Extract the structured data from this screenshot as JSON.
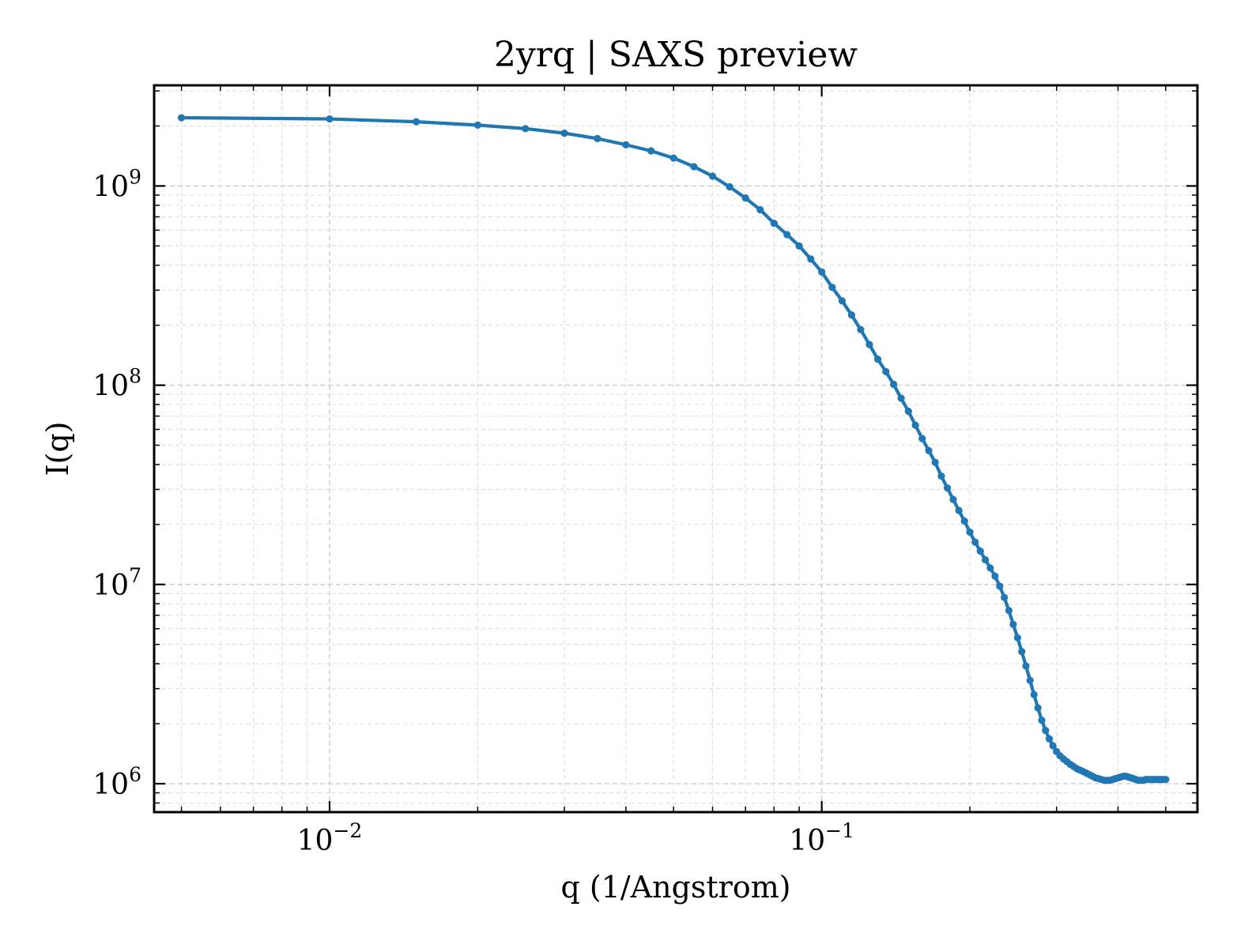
{
  "chart_data": {
    "type": "line",
    "title": "2yrq | SAXS preview",
    "xlabel": "q (1/Angstrom)",
    "ylabel": "I(q)",
    "xscale": "log",
    "yscale": "log",
    "xlim": [
      0.0044,
      0.58
    ],
    "ylim": [
      720000,
      3200000000
    ],
    "grid": true,
    "legend": "none",
    "color": "#1f77b4",
    "x_ticks": [
      {
        "base": "10",
        "exp": "−2",
        "value": 0.01
      },
      {
        "base": "10",
        "exp": "−1",
        "value": 0.1
      }
    ],
    "y_ticks": [
      {
        "base": "10",
        "exp": "6",
        "value": 1000000
      },
      {
        "base": "10",
        "exp": "7",
        "value": 10000000
      },
      {
        "base": "10",
        "exp": "8",
        "value": 100000000
      },
      {
        "base": "10",
        "exp": "9",
        "value": 1000000000
      }
    ],
    "series": [
      {
        "x": [
          0.005,
          0.01,
          0.015,
          0.02,
          0.025,
          0.03,
          0.035,
          0.04,
          0.045,
          0.05,
          0.055,
          0.06,
          0.065,
          0.07,
          0.075,
          0.08,
          0.085,
          0.09,
          0.095,
          0.1,
          0.105,
          0.11,
          0.115,
          0.12,
          0.125,
          0.13,
          0.135,
          0.14,
          0.145,
          0.15,
          0.155,
          0.16,
          0.165,
          0.17,
          0.175,
          0.18,
          0.185,
          0.19,
          0.195,
          0.2,
          0.205,
          0.21,
          0.215,
          0.22,
          0.225,
          0.23,
          0.235,
          0.24,
          0.245,
          0.25,
          0.255,
          0.26,
          0.265,
          0.27,
          0.275,
          0.28,
          0.285,
          0.29,
          0.295,
          0.3,
          0.305,
          0.31,
          0.315,
          0.32,
          0.325,
          0.33,
          0.335,
          0.34,
          0.345,
          0.35,
          0.355,
          0.36,
          0.365,
          0.37,
          0.375,
          0.38,
          0.385,
          0.39,
          0.395,
          0.4,
          0.405,
          0.41,
          0.415,
          0.42,
          0.425,
          0.43,
          0.435,
          0.44,
          0.445,
          0.45,
          0.455,
          0.46,
          0.465,
          0.47,
          0.475,
          0.48,
          0.485,
          0.49,
          0.495,
          0.5
        ],
        "y": [
          2200000000,
          2170000000,
          2100000000,
          2020000000,
          1940000000,
          1840000000,
          1730000000,
          1610000000,
          1500000000,
          1380000000,
          1250000000,
          1120000000,
          990000000,
          870000000,
          760000000,
          650000000,
          570000000,
          500000000,
          430000000,
          370000000,
          310000000,
          265000000,
          225000000,
          190000000,
          160000000,
          135000000,
          117000000,
          101000000,
          86000000,
          74000000,
          63000000,
          54000000,
          47000000,
          41000000,
          35000000,
          30500000,
          26700000,
          23500000,
          20800000,
          18300000,
          16300000,
          14700000,
          13300000,
          12100000,
          11000000,
          9800000,
          8600000,
          7400000,
          6300000,
          5400000,
          4600000,
          3900000,
          3300000,
          2800000,
          2400000,
          2080000,
          1850000,
          1680000,
          1550000,
          1450000,
          1380000,
          1330000,
          1290000,
          1250000,
          1220000,
          1190000,
          1170000,
          1150000,
          1130000,
          1110000,
          1090000,
          1070000,
          1060000,
          1050000,
          1040000,
          1040000,
          1040000,
          1050000,
          1060000,
          1070000,
          1080000,
          1090000,
          1090000,
          1080000,
          1070000,
          1060000,
          1050000,
          1040000,
          1040000,
          1040000,
          1050000,
          1050000,
          1050000,
          1050000,
          1050000,
          1050000,
          1050000,
          1050000,
          1050000,
          1050000
        ]
      }
    ]
  }
}
